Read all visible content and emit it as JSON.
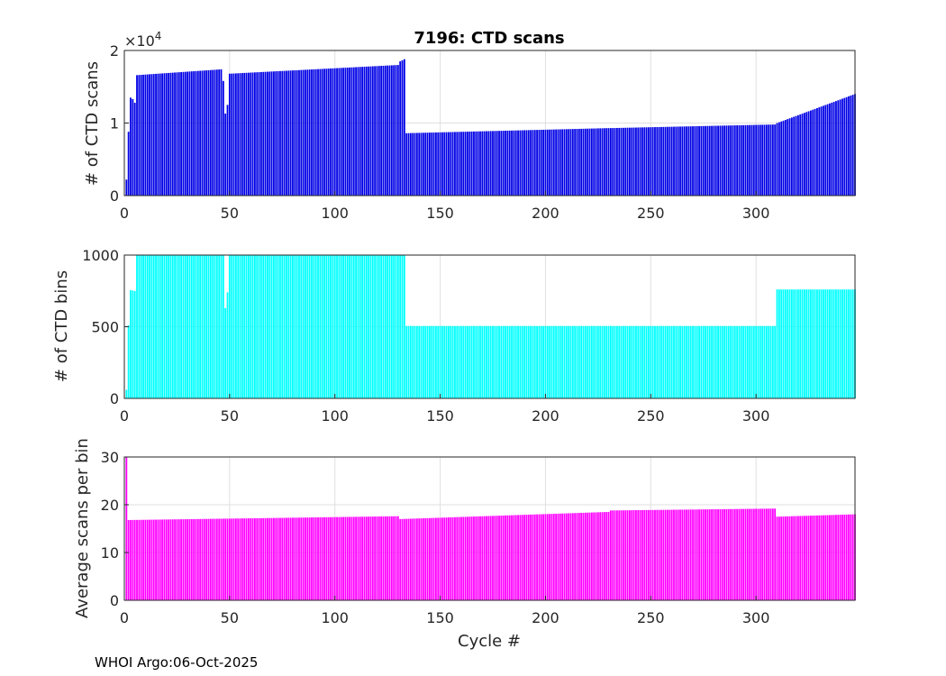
{
  "footer": "WHOI Argo:06-Oct-2025",
  "chart_data": [
    {
      "type": "bar",
      "title": "7196: CTD scans",
      "xlabel": "",
      "ylabel": "# of CTD scans",
      "xlim": [
        0,
        347
      ],
      "ylim": [
        0,
        2
      ],
      "x_ticks": [
        0,
        50,
        100,
        150,
        200,
        250,
        300
      ],
      "y_ticks": [
        0,
        1,
        2
      ],
      "exponent_label": "×10",
      "exponent_power": "4",
      "color": "#0000E6",
      "grid": true,
      "segments": [
        {
          "x0": 1,
          "x1": 1,
          "from": 0.22,
          "to": 0.22
        },
        {
          "x0": 2,
          "x1": 2,
          "from": 0.88,
          "to": 0.88
        },
        {
          "x0": 3,
          "x1": 4,
          "from": 1.35,
          "to": 1.33
        },
        {
          "x0": 5,
          "x1": 5,
          "from": 1.28,
          "to": 1.28
        },
        {
          "x0": 6,
          "x1": 46,
          "from": 1.66,
          "to": 1.74
        },
        {
          "x0": 47,
          "x1": 47,
          "from": 1.58,
          "to": 1.58
        },
        {
          "x0": 48,
          "x1": 48,
          "from": 1.13,
          "to": 1.13
        },
        {
          "x0": 49,
          "x1": 49,
          "from": 1.25,
          "to": 1.25
        },
        {
          "x0": 50,
          "x1": 130,
          "from": 1.68,
          "to": 1.8
        },
        {
          "x0": 131,
          "x1": 133,
          "from": 1.85,
          "to": 1.88
        },
        {
          "x0": 134,
          "x1": 230,
          "from": 0.86,
          "to": 0.93
        },
        {
          "x0": 231,
          "x1": 309,
          "from": 0.93,
          "to": 0.98
        },
        {
          "x0": 310,
          "x1": 347,
          "from": 1.0,
          "to": 1.4
        }
      ]
    },
    {
      "type": "bar",
      "title": "",
      "xlabel": "",
      "ylabel": "# of CTD bins",
      "xlim": [
        0,
        347
      ],
      "ylim": [
        0,
        1000
      ],
      "x_ticks": [
        0,
        50,
        100,
        150,
        200,
        250,
        300
      ],
      "y_ticks": [
        0,
        500,
        1000
      ],
      "color": "#00FFFF",
      "grid": true,
      "segments": [
        {
          "x0": 1,
          "x1": 1,
          "from": 60,
          "to": 60
        },
        {
          "x0": 2,
          "x1": 2,
          "from": 510,
          "to": 510
        },
        {
          "x0": 3,
          "x1": 5,
          "from": 755,
          "to": 750
        },
        {
          "x0": 6,
          "x1": 47,
          "from": 1000,
          "to": 1000
        },
        {
          "x0": 48,
          "x1": 48,
          "from": 630,
          "to": 630
        },
        {
          "x0": 49,
          "x1": 49,
          "from": 740,
          "to": 740
        },
        {
          "x0": 50,
          "x1": 133,
          "from": 1000,
          "to": 1000
        },
        {
          "x0": 134,
          "x1": 309,
          "from": 505,
          "to": 505
        },
        {
          "x0": 310,
          "x1": 347,
          "from": 760,
          "to": 760
        }
      ]
    },
    {
      "type": "bar",
      "title": "",
      "xlabel": "Cycle #",
      "ylabel": "Average scans per bin",
      "xlim": [
        0,
        347
      ],
      "ylim": [
        0,
        30
      ],
      "x_ticks": [
        0,
        50,
        100,
        150,
        200,
        250,
        300
      ],
      "y_ticks": [
        0,
        10,
        20,
        30
      ],
      "color": "#FF00FF",
      "grid": true,
      "segments": [
        {
          "x0": 1,
          "x1": 1,
          "from": 30,
          "to": 30
        },
        {
          "x0": 2,
          "x1": 130,
          "from": 16.8,
          "to": 17.6
        },
        {
          "x0": 131,
          "x1": 230,
          "from": 17.0,
          "to": 18.5
        },
        {
          "x0": 231,
          "x1": 309,
          "from": 18.8,
          "to": 19.2
        },
        {
          "x0": 310,
          "x1": 347,
          "from": 17.5,
          "to": 18.0
        }
      ]
    }
  ]
}
